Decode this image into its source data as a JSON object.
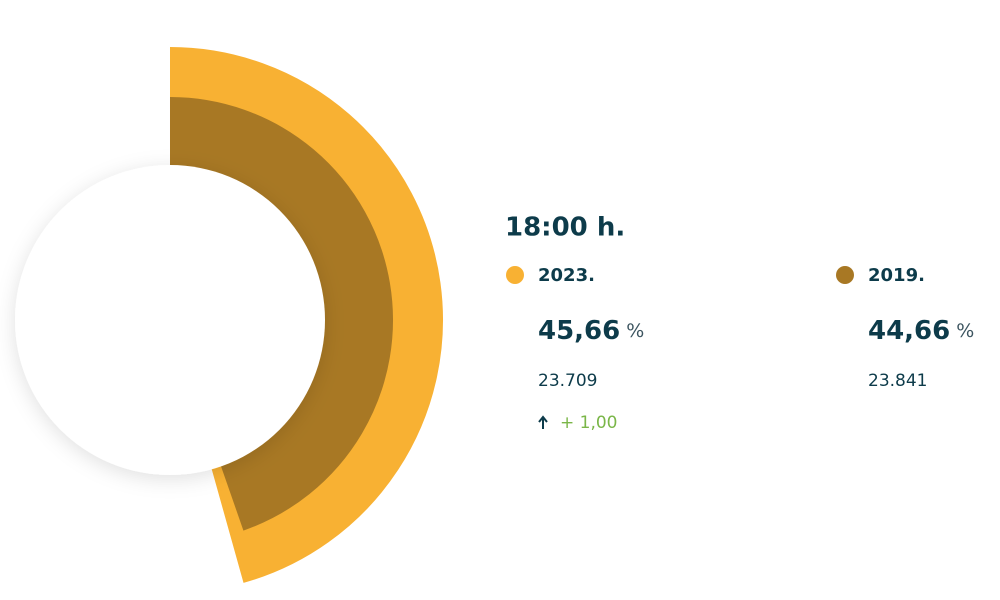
{
  "chart_data": {
    "type": "radial-bar",
    "title": "18:00 h.",
    "unit": "%",
    "series": [
      {
        "name": "2023.",
        "color": "#f8b133",
        "values": [
          45.66
        ],
        "value_labels": [
          "45,66"
        ],
        "votes": "23.709",
        "change": "+ 1,00"
      },
      {
        "name": "2019.",
        "color": "#a87824",
        "values": [
          44.66
        ],
        "value_labels": [
          "44,66"
        ],
        "votes": "23.841"
      }
    ]
  }
}
